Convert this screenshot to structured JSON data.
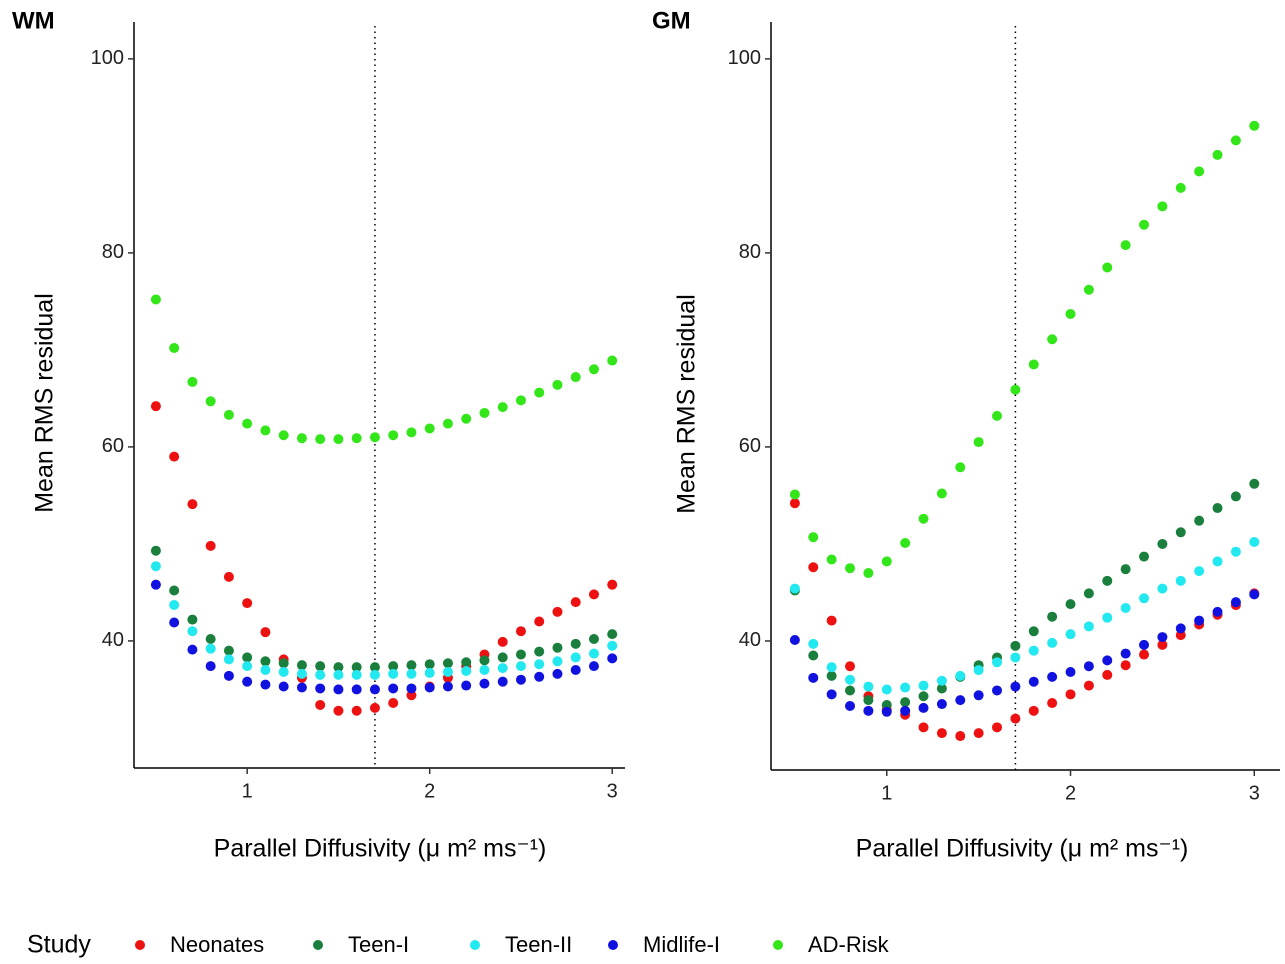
{
  "chart_data": [
    {
      "type": "scatter",
      "title": "WM",
      "xlabel": "Parallel Diffusivity (μ m² ms⁻¹)",
      "ylabel": "Mean RMS residual",
      "legend_title": "Study",
      "vline": 1.7,
      "x": [
        0.5,
        0.6,
        0.7,
        0.8,
        0.9,
        1.0,
        1.1,
        1.2,
        1.3,
        1.4,
        1.5,
        1.6,
        1.7,
        1.8,
        1.9,
        2.0,
        2.1,
        2.2,
        2.3,
        2.4,
        2.5,
        2.6,
        2.7,
        2.8,
        2.9,
        3.0
      ],
      "xlim": [
        0.38,
        3.07
      ],
      "xticks": [
        1,
        2,
        3
      ],
      "ylim": [
        26.9,
        103.8
      ],
      "yticks": [
        40,
        60,
        80,
        100
      ],
      "series": [
        {
          "name": "Neonates",
          "color": "#ee1111",
          "values": [
            64.2,
            59,
            54.1,
            49.8,
            46.6,
            43.9,
            40.9,
            38.1,
            36.2,
            33.4,
            32.8,
            32.8,
            33.1,
            33.6,
            34.4,
            35.3,
            36.2,
            37.4,
            38.6,
            39.9,
            41.0,
            42.0,
            43.0,
            44.0,
            44.8,
            45.8
          ]
        },
        {
          "name": "Teen-I",
          "color": "#1a7f3c",
          "values": [
            49.3,
            45.2,
            42.2,
            40.2,
            39.0,
            38.3,
            37.9,
            37.7,
            37.5,
            37.4,
            37.3,
            37.3,
            37.3,
            37.4,
            37.5,
            37.6,
            37.7,
            37.8,
            38.0,
            38.3,
            38.6,
            38.9,
            39.3,
            39.7,
            40.2,
            40.7
          ]
        },
        {
          "name": "Teen-II",
          "color": "#22e8f0",
          "values": [
            47.7,
            43.7,
            41.0,
            39.2,
            38.1,
            37.4,
            37.0,
            36.8,
            36.6,
            36.5,
            36.5,
            36.5,
            36.5,
            36.6,
            36.6,
            36.7,
            36.8,
            36.9,
            37.0,
            37.2,
            37.4,
            37.6,
            37.9,
            38.3,
            38.7,
            39.5
          ]
        },
        {
          "name": "Midlife-I",
          "color": "#1212e0",
          "values": [
            45.8,
            41.9,
            39.1,
            37.4,
            36.4,
            35.8,
            35.5,
            35.3,
            35.2,
            35.1,
            35.0,
            35.0,
            35.0,
            35.1,
            35.1,
            35.2,
            35.3,
            35.4,
            35.6,
            35.8,
            36.0,
            36.3,
            36.6,
            37.0,
            37.4,
            38.2
          ]
        },
        {
          "name": "AD-Risk",
          "color": "#33e61a",
          "values": [
            75.2,
            70.2,
            66.7,
            64.7,
            63.3,
            62.4,
            61.7,
            61.2,
            60.9,
            60.8,
            60.8,
            60.9,
            61.0,
            61.2,
            61.5,
            61.9,
            62.4,
            62.9,
            63.5,
            64.1,
            64.8,
            65.6,
            66.4,
            67.2,
            68.0,
            68.9
          ]
        }
      ]
    },
    {
      "type": "scatter",
      "title": "GM",
      "xlabel": "Parallel Diffusivity (μ m² ms⁻¹)",
      "ylabel": "Mean RMS residual",
      "vline": 1.7,
      "x": [
        0.5,
        0.6,
        0.7,
        0.8,
        0.9,
        1.0,
        1.1,
        1.2,
        1.3,
        1.4,
        1.5,
        1.6,
        1.7,
        1.8,
        1.9,
        2.0,
        2.1,
        2.2,
        2.3,
        2.4,
        2.5,
        2.6,
        2.7,
        2.8,
        2.9,
        3.0
      ],
      "xlim": [
        0.37,
        3.14
      ],
      "xticks": [
        1,
        2,
        3
      ],
      "ylim": [
        26.7,
        103.8
      ],
      "yticks": [
        40,
        60,
        80,
        100
      ],
      "series": [
        {
          "name": "Neonates",
          "color": "#ee1111",
          "values": [
            54.2,
            47.6,
            42.1,
            37.4,
            34.3,
            32.9,
            32.4,
            31.1,
            30.5,
            30.2,
            30.5,
            31.1,
            32.0,
            32.8,
            33.6,
            34.5,
            35.4,
            36.5,
            37.5,
            38.6,
            39.6,
            40.6,
            41.7,
            42.7,
            43.7,
            44.9
          ]
        },
        {
          "name": "Teen-I",
          "color": "#1a7f3c",
          "values": [
            45.2,
            38.5,
            36.4,
            34.9,
            33.9,
            33.4,
            33.7,
            34.3,
            35.1,
            36.3,
            37.5,
            38.3,
            39.5,
            41.0,
            42.5,
            43.8,
            44.9,
            46.2,
            47.4,
            48.7,
            50.0,
            51.2,
            52.4,
            53.7,
            54.9,
            56.2
          ]
        },
        {
          "name": "Teen-II",
          "color": "#22e8f0",
          "values": [
            45.4,
            39.7,
            37.3,
            36.0,
            35.3,
            35.0,
            35.2,
            35.4,
            35.9,
            36.4,
            37.0,
            37.8,
            38.3,
            39.0,
            39.8,
            40.7,
            41.5,
            42.4,
            43.4,
            44.4,
            45.4,
            46.2,
            47.2,
            48.2,
            49.2,
            50.2
          ]
        },
        {
          "name": "Midlife-I",
          "color": "#1212e0",
          "values": [
            40.1,
            36.2,
            34.5,
            33.3,
            32.8,
            32.7,
            32.8,
            33.1,
            33.5,
            33.9,
            34.4,
            34.9,
            35.3,
            35.8,
            36.3,
            36.8,
            37.4,
            38.0,
            38.7,
            39.6,
            40.4,
            41.3,
            42.1,
            43.0,
            44.0,
            44.8
          ]
        },
        {
          "name": "AD-Risk",
          "color": "#33e61a",
          "values": [
            55.1,
            50.7,
            48.4,
            47.5,
            47.0,
            48.2,
            50.1,
            52.6,
            55.2,
            57.9,
            60.5,
            63.2,
            65.9,
            68.5,
            71.1,
            73.7,
            76.2,
            78.5,
            80.8,
            82.9,
            84.8,
            86.7,
            88.4,
            90.1,
            91.6,
            93.1
          ]
        }
      ]
    }
  ]
}
